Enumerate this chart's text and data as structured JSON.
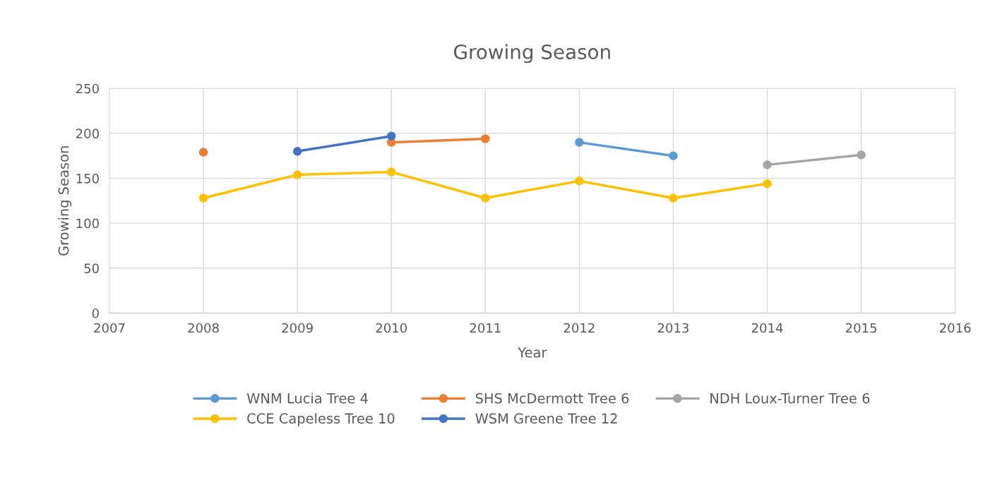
{
  "chart_data": {
    "type": "line",
    "title": "Growing Season",
    "xlabel": "Year",
    "ylabel": "Growing Season",
    "xlim": [
      2007,
      2016
    ],
    "xticks": [
      2007,
      2008,
      2009,
      2010,
      2011,
      2012,
      2013,
      2014,
      2015,
      2016
    ],
    "ylim": [
      0,
      250
    ],
    "yticks": [
      0,
      50,
      100,
      150,
      200,
      250
    ],
    "grid": true,
    "legend": "bottom",
    "marker": "circle",
    "line_style": "solid",
    "series": [
      {
        "name": "WNM Lucia Tree 4",
        "color": "#5b9bd5",
        "x": [
          2012,
          2013
        ],
        "values": [
          190,
          175
        ]
      },
      {
        "name": "SHS McDermott Tree 6",
        "color": "#ed7d31",
        "x": [
          2008,
          2009,
          2010,
          2011
        ],
        "values": [
          179,
          null,
          190,
          194
        ]
      },
      {
        "name": "NDH Loux-Turner Tree 6",
        "color": "#a5a5a5",
        "x": [
          2014,
          2015
        ],
        "values": [
          165,
          176
        ]
      },
      {
        "name": "CCE Capeless Tree 10",
        "color": "#ffc000",
        "x": [
          2008,
          2009,
          2010,
          2011,
          2012,
          2013,
          2014
        ],
        "values": [
          128,
          154,
          157,
          128,
          147,
          128,
          144
        ]
      },
      {
        "name": "WSM Greene Tree 12",
        "color": "#4472c4",
        "x": [
          2009,
          2010
        ],
        "values": [
          180,
          197
        ]
      }
    ]
  }
}
